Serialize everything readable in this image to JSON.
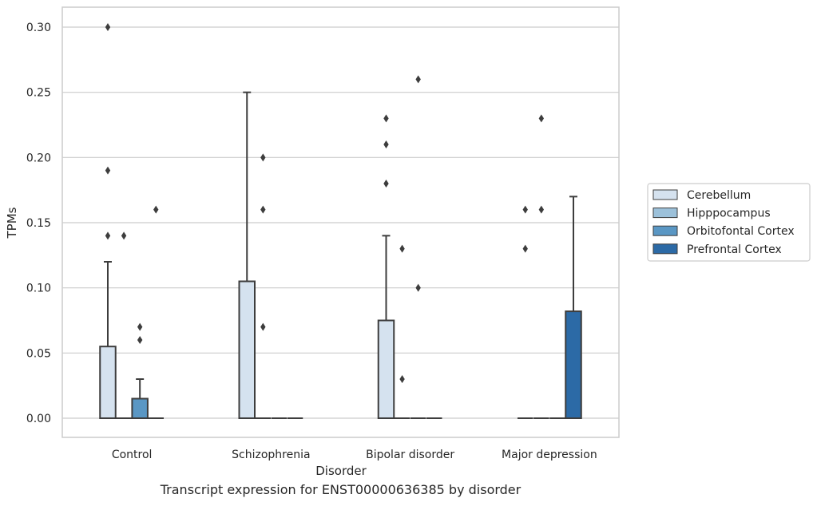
{
  "caption": "Transcript expression for ENST00000636385 by disorder",
  "chart_data": {
    "type": "box",
    "xlabel": "Disorder",
    "ylabel": "TPMs",
    "ylim": [
      -0.015,
      0.315
    ],
    "yticks": [
      0.0,
      0.05,
      0.1,
      0.15,
      0.2,
      0.25,
      0.3
    ],
    "ytick_labels": [
      "0.00",
      "0.05",
      "0.10",
      "0.15",
      "0.20",
      "0.25",
      "0.30"
    ],
    "grid": "horizontal",
    "legend_position": "right",
    "categories": [
      "Control",
      "Schizophrenia",
      "Bipolar disorder",
      "Major depression"
    ],
    "series": [
      {
        "name": "Cerebellum",
        "color": "#d5e2ef",
        "boxes": [
          {
            "q1": 0.0,
            "median": 0.0,
            "q3": 0.055,
            "whisker_low": 0.0,
            "whisker_high": 0.12,
            "outliers": [
              0.14,
              0.19,
              0.3
            ]
          },
          {
            "q1": 0.0,
            "median": 0.0,
            "q3": 0.105,
            "whisker_low": 0.0,
            "whisker_high": 0.25,
            "outliers": []
          },
          {
            "q1": 0.0,
            "median": 0.0,
            "q3": 0.075,
            "whisker_low": 0.0,
            "whisker_high": 0.14,
            "outliers": [
              0.18,
              0.21,
              0.23
            ]
          },
          {
            "q1": 0.0,
            "median": 0.0,
            "q3": 0.0,
            "whisker_low": 0.0,
            "whisker_high": 0.0,
            "outliers": [
              0.13,
              0.16
            ]
          }
        ]
      },
      {
        "name": "Hipppocampus",
        "color": "#9cc1da",
        "boxes": [
          {
            "q1": 0.0,
            "median": 0.0,
            "q3": 0.0,
            "whisker_low": 0.0,
            "whisker_high": 0.0,
            "outliers": [
              0.14
            ]
          },
          {
            "q1": 0.0,
            "median": 0.0,
            "q3": 0.0,
            "whisker_low": 0.0,
            "whisker_high": 0.0,
            "outliers": [
              0.07,
              0.16,
              0.2
            ]
          },
          {
            "q1": 0.0,
            "median": 0.0,
            "q3": 0.0,
            "whisker_low": 0.0,
            "whisker_high": 0.0,
            "outliers": [
              0.03,
              0.13
            ]
          },
          {
            "q1": 0.0,
            "median": 0.0,
            "q3": 0.0,
            "whisker_low": 0.0,
            "whisker_high": 0.0,
            "outliers": [
              0.16,
              0.23
            ]
          }
        ]
      },
      {
        "name": "Orbitofontal Cortex",
        "color": "#5a97c4",
        "boxes": [
          {
            "q1": 0.0,
            "median": 0.0,
            "q3": 0.015,
            "whisker_low": 0.0,
            "whisker_high": 0.03,
            "outliers": [
              0.06,
              0.07
            ]
          },
          {
            "q1": 0.0,
            "median": 0.0,
            "q3": 0.0,
            "whisker_low": 0.0,
            "whisker_high": 0.0,
            "outliers": []
          },
          {
            "q1": 0.0,
            "median": 0.0,
            "q3": 0.0,
            "whisker_low": 0.0,
            "whisker_high": 0.0,
            "outliers": [
              0.1,
              0.26
            ]
          },
          {
            "q1": 0.0,
            "median": 0.0,
            "q3": 0.0,
            "whisker_low": 0.0,
            "whisker_high": 0.0,
            "outliers": []
          }
        ]
      },
      {
        "name": "Prefrontal Cortex",
        "color": "#2c6aa6",
        "boxes": [
          {
            "q1": 0.0,
            "median": 0.0,
            "q3": 0.0,
            "whisker_low": 0.0,
            "whisker_high": 0.0,
            "outliers": [
              0.16
            ]
          },
          {
            "q1": 0.0,
            "median": 0.0,
            "q3": 0.0,
            "whisker_low": 0.0,
            "whisker_high": 0.0,
            "outliers": []
          },
          {
            "q1": 0.0,
            "median": 0.0,
            "q3": 0.0,
            "whisker_low": 0.0,
            "whisker_high": 0.0,
            "outliers": []
          },
          {
            "q1": 0.0,
            "median": 0.0,
            "q3": 0.082,
            "whisker_low": 0.0,
            "whisker_high": 0.17,
            "outliers": []
          }
        ]
      }
    ]
  }
}
